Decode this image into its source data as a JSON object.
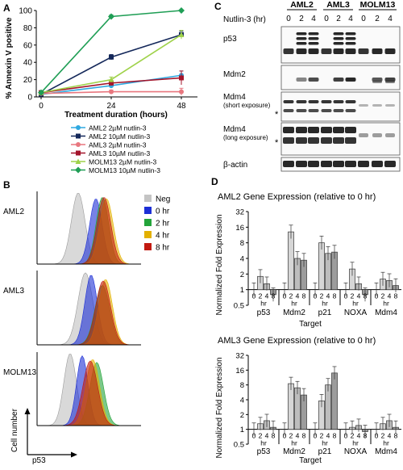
{
  "panel_labels": {
    "A": "A",
    "B": "B",
    "C": "C",
    "D": "D"
  },
  "chart_data": [
    {
      "id": "A",
      "type": "line",
      "xlabel": "Treatment duration (hours)",
      "ylabel": "% Annexin V positive",
      "x": [
        0,
        24,
        48
      ],
      "xlim": [
        0,
        48
      ],
      "ylim": [
        0,
        100
      ],
      "yticks": [
        0,
        20,
        40,
        60,
        80,
        100
      ],
      "series": [
        {
          "name": "AML2 2µM nutlin-3",
          "color": "#2fa8e0",
          "marker": "circle",
          "values": [
            3,
            13,
            25
          ],
          "err": [
            1,
            2,
            5
          ]
        },
        {
          "name": "AML2 10µM nutlin-3",
          "color": "#14285a",
          "marker": "square",
          "values": [
            3,
            46,
            72
          ],
          "err": [
            1,
            3,
            4
          ]
        },
        {
          "name": "AML3 2µM nutlin-3",
          "color": "#e8777f",
          "marker": "circle",
          "values": [
            4,
            6,
            6
          ],
          "err": [
            1,
            2,
            4
          ]
        },
        {
          "name": "AML3 10µM nutlin-3",
          "color": "#a3152b",
          "marker": "square",
          "values": [
            5,
            16,
            22
          ],
          "err": [
            1,
            3,
            8
          ]
        },
        {
          "name": "MOLM13 2µM nutlin-3",
          "color": "#9fd24a",
          "marker": "triangle",
          "values": [
            5,
            20,
            72
          ],
          "err": [
            1,
            3,
            5
          ]
        },
        {
          "name": "MOLM13 10µM nutlin-3",
          "color": "#1f9e55",
          "marker": "diamond",
          "values": [
            5,
            93,
            100
          ],
          "err": [
            1,
            2,
            0
          ]
        }
      ]
    },
    {
      "id": "D-top",
      "type": "bar",
      "title": "AML2 Gene Expression (relative to 0 hr)",
      "xlabel": "Target",
      "ylabel": "Normalized Fold Expression",
      "yscale": "log2",
      "ylim": [
        0.5,
        32
      ],
      "yticks": [
        "32",
        "16",
        "8",
        "4",
        "2",
        "1",
        "0.5"
      ],
      "group_tick_labels": [
        "0",
        "2",
        "4",
        "8"
      ],
      "unit_label": "hr",
      "categories": [
        "p53",
        "Mdm2",
        "p21",
        "NOXA",
        "Mdm4"
      ],
      "series": [
        {
          "name": "0",
          "values": [
            1,
            1,
            1,
            1,
            1
          ]
        },
        {
          "name": "2",
          "values": [
            1.8,
            13,
            8,
            2.5,
            1.6
          ]
        },
        {
          "name": "4",
          "values": [
            1.3,
            4,
            5,
            1.3,
            1.5
          ]
        },
        {
          "name": "8",
          "values": [
            0.8,
            3.7,
            5.3,
            0.8,
            1.2
          ]
        }
      ]
    },
    {
      "id": "D-bottom",
      "type": "bar",
      "title": "AML3 Gene Expression (relative to 0 hr)",
      "xlabel": "Target",
      "ylabel": "Normalized Fold Expression",
      "yscale": "log2",
      "ylim": [
        0.5,
        32
      ],
      "yticks": [
        "32",
        "16",
        "8",
        "4",
        "2",
        "1",
        "0.5"
      ],
      "group_tick_labels": [
        "0",
        "2",
        "4",
        "8"
      ],
      "unit_label": "hr",
      "categories": [
        "p53",
        "Mdm2",
        "p21",
        "NOXA",
        "Mdm4"
      ],
      "series": [
        {
          "name": "0",
          "values": [
            1,
            1,
            1,
            1,
            1
          ]
        },
        {
          "name": "2",
          "values": [
            1.3,
            8.5,
            3.8,
            1.1,
            1.3
          ]
        },
        {
          "name": "4",
          "values": [
            1.5,
            7,
            8,
            1.2,
            1.5
          ]
        },
        {
          "name": "8",
          "values": [
            1.1,
            5,
            14,
            0.9,
            1.1
          ]
        }
      ]
    }
  ],
  "panel_b": {
    "rows": [
      "AML2",
      "AML3",
      "MOLM13"
    ],
    "legend": [
      {
        "label": "Neg",
        "color": "#c4c4c4"
      },
      {
        "label": "0 hr",
        "color": "#1c2fd6"
      },
      {
        "label": "2 hr",
        "color": "#23a43a"
      },
      {
        "label": "4 hr",
        "color": "#e3b000"
      },
      {
        "label": "8 hr",
        "color": "#c21a10"
      }
    ],
    "ylabel": "Cell number",
    "xlabel": "p53"
  },
  "panel_c": {
    "treatment_label": "Nutlin-3 (hr)",
    "cell_lines": [
      "AML2",
      "AML3",
      "MOLM13"
    ],
    "lane_labels": [
      "0",
      "2",
      "4"
    ],
    "blots": [
      "p53",
      "Mdm2",
      "Mdm4",
      "Mdm4",
      "β-actin"
    ],
    "blot_notes": [
      "",
      "",
      "(short exposure)",
      "(long exposure)",
      ""
    ],
    "asterisk": "*"
  }
}
